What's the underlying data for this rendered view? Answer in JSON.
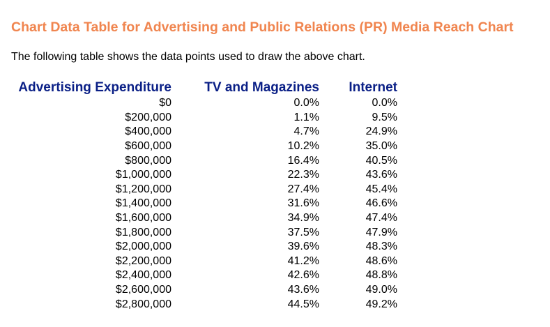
{
  "title": "Chart Data Table for Advertising and Public Relations (PR) Media Reach Chart",
  "intro": "The following table shows the data points used to draw the above chart.",
  "table": {
    "headers": [
      "Advertising Expenditure",
      "TV and Magazines",
      "Internet"
    ],
    "rows": [
      [
        "$0",
        "0.0%",
        "0.0%"
      ],
      [
        "$200,000",
        "1.1%",
        "9.5%"
      ],
      [
        "$400,000",
        "4.7%",
        "24.9%"
      ],
      [
        "$600,000",
        "10.2%",
        "35.0%"
      ],
      [
        "$800,000",
        "16.4%",
        "40.5%"
      ],
      [
        "$1,000,000",
        "22.3%",
        "43.6%"
      ],
      [
        "$1,200,000",
        "27.4%",
        "45.4%"
      ],
      [
        "$1,400,000",
        "31.6%",
        "46.6%"
      ],
      [
        "$1,600,000",
        "34.9%",
        "47.4%"
      ],
      [
        "$1,800,000",
        "37.5%",
        "47.9%"
      ],
      [
        "$2,000,000",
        "39.6%",
        "48.3%"
      ],
      [
        "$2,200,000",
        "41.2%",
        "48.6%"
      ],
      [
        "$2,400,000",
        "42.6%",
        "48.8%"
      ],
      [
        "$2,600,000",
        "43.6%",
        "49.0%"
      ],
      [
        "$2,800,000",
        "44.5%",
        "49.2%"
      ]
    ]
  },
  "highlight_color": "#fbff2a",
  "title_color": "#f0854f",
  "header_color": "#0a1f86"
}
